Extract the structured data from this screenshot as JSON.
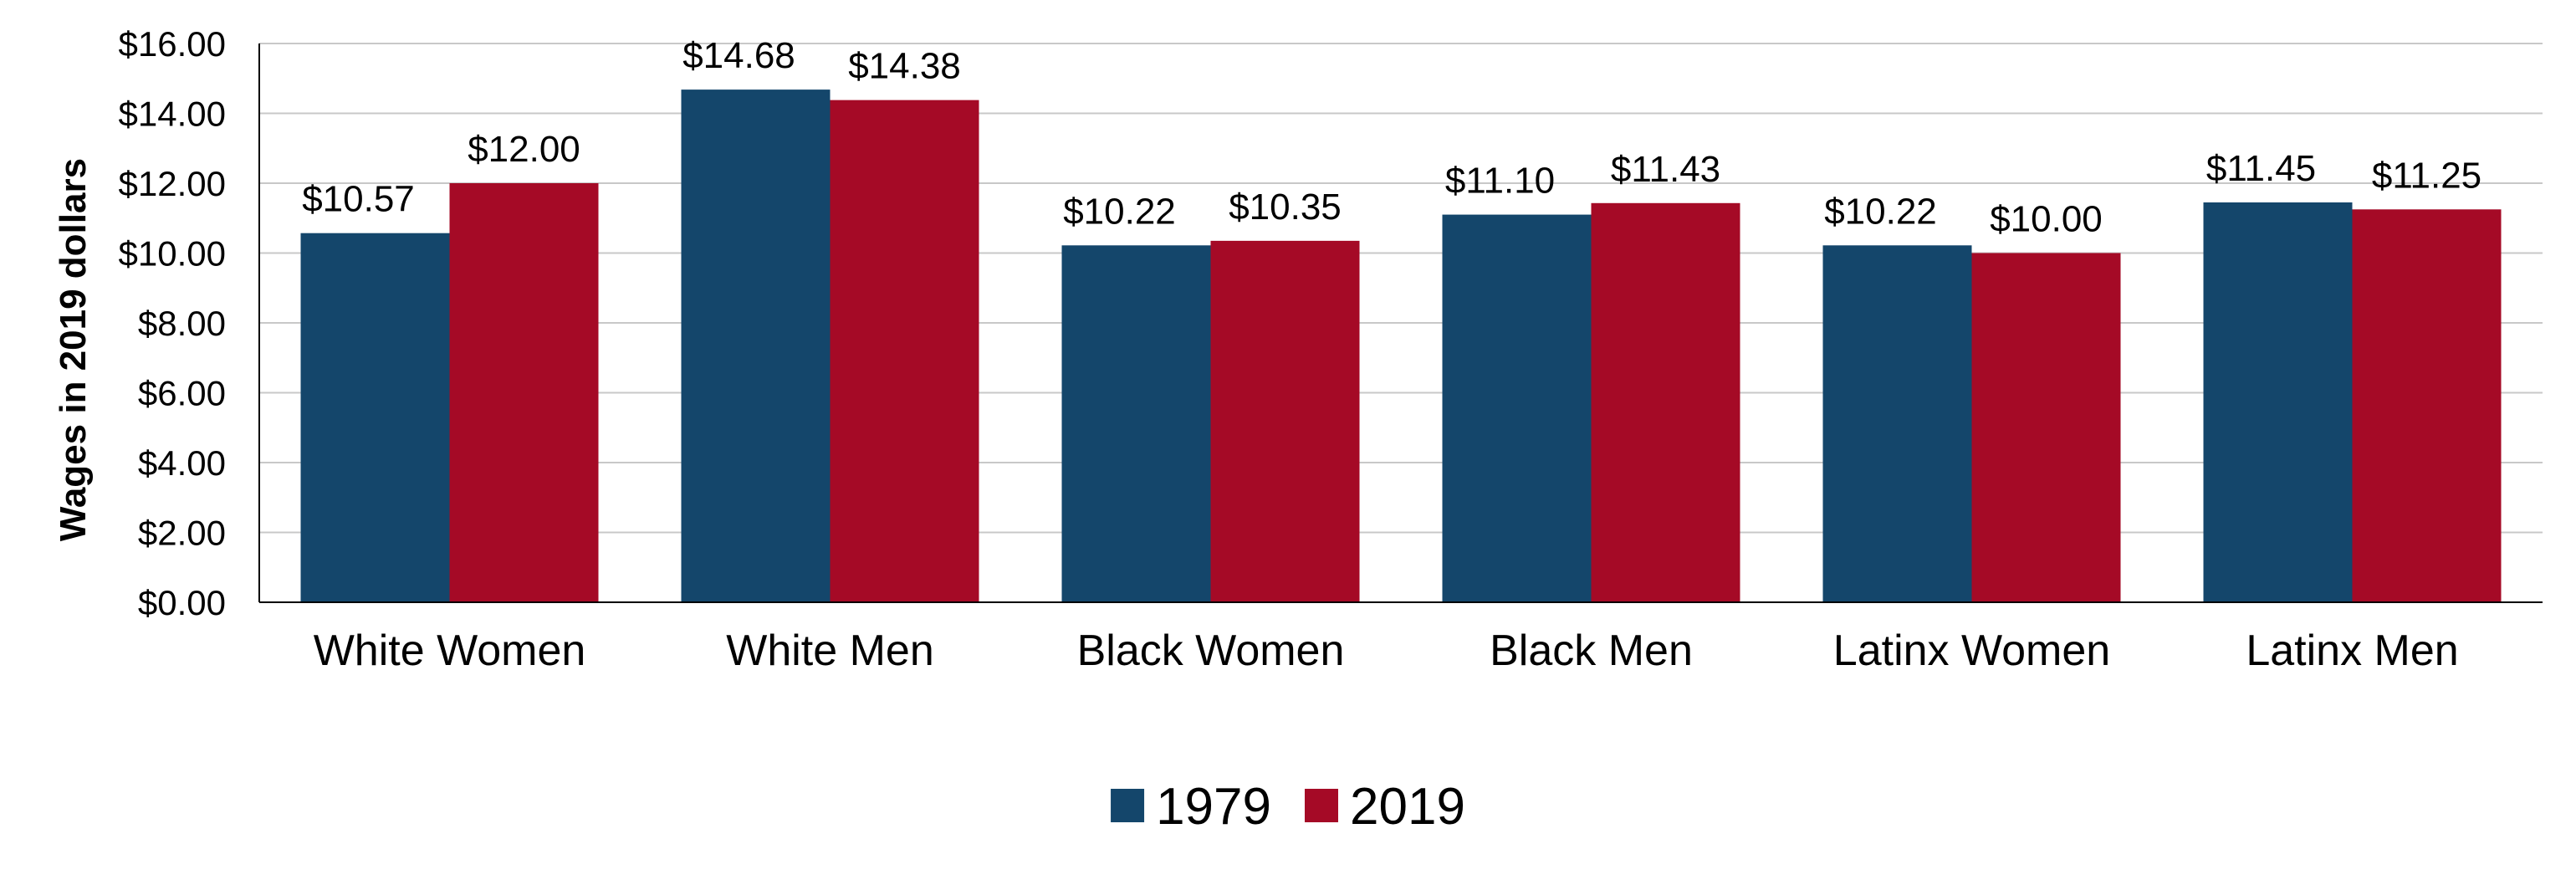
{
  "chart_data": {
    "type": "bar",
    "categories": [
      "White Women",
      "White Men",
      "Black Women",
      "Black Men",
      "Latinx Women",
      "Latinx Men"
    ],
    "series": [
      {
        "name": "1979",
        "values": [
          10.57,
          14.68,
          10.22,
          11.1,
          10.22,
          11.45
        ],
        "labels": [
          "$10.57",
          "$14.68",
          "$10.22",
          "$11.10",
          "$10.22",
          "$11.45"
        ],
        "color": "#14466b"
      },
      {
        "name": "2019",
        "values": [
          12.0,
          14.38,
          10.35,
          11.43,
          10.0,
          11.25
        ],
        "labels": [
          "$12.00",
          "$14.38",
          "$10.35",
          "$11.43",
          "$10.00",
          "$11.25"
        ],
        "color": "#a50a26"
      }
    ],
    "ylabel": "Wages in 2019 dollars",
    "ylim": [
      0,
      16
    ],
    "yticks": [
      0,
      2,
      4,
      6,
      8,
      10,
      12,
      14,
      16
    ],
    "ytick_labels": [
      "$0.00",
      "$2.00",
      "$4.00",
      "$6.00",
      "$8.00",
      "$10.00",
      "$12.00",
      "$14.00",
      "$16.00"
    ],
    "grid": true,
    "legend_position": "bottom-center"
  }
}
